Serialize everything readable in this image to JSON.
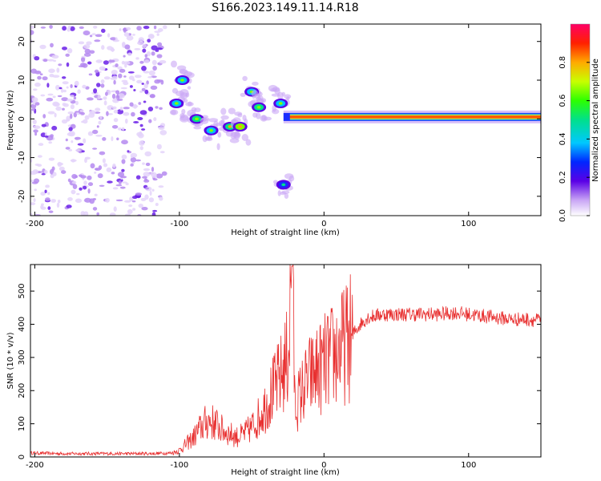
{
  "title": "S166.2023.149.11.14.R18",
  "chart_data": [
    {
      "type": "heatmap",
      "name": "spectrogram",
      "xlabel": "Height of straight line (km)",
      "ylabel": "Frequency (Hz)",
      "xlim": [
        -203,
        150
      ],
      "ylim": [
        -25,
        24.5
      ],
      "xticks": [
        -200,
        -100,
        0,
        100
      ],
      "yticks": [
        -20,
        -10,
        0,
        10,
        20
      ],
      "colorbar": {
        "label": "Normalized spectral amplitude",
        "range": [
          0,
          1
        ],
        "ticks": [
          "0.0",
          "0.2",
          "0.4",
          "0.6",
          "0.8"
        ]
      },
      "features": [
        {
          "kind": "noise",
          "x_range": [
            -203,
            -110
          ],
          "f_range": [
            -25,
            24
          ]
        },
        {
          "kind": "blob",
          "x": -102,
          "f": 4,
          "level": 0.35
        },
        {
          "kind": "blob",
          "x": -98,
          "f": 10,
          "level": 0.3
        },
        {
          "kind": "blob",
          "x": -88,
          "f": 0,
          "level": 0.4
        },
        {
          "kind": "blob",
          "x": -78,
          "f": -3,
          "level": 0.35
        },
        {
          "kind": "blob",
          "x": -65,
          "f": -2,
          "level": 0.45
        },
        {
          "kind": "blob",
          "x": -58,
          "f": -2,
          "level": 0.5
        },
        {
          "kind": "blob",
          "x": -50,
          "f": 7,
          "level": 0.35
        },
        {
          "kind": "blob",
          "x": -45,
          "f": 3,
          "level": 0.4
        },
        {
          "kind": "blob",
          "x": -30,
          "f": 4,
          "level": 0.3
        },
        {
          "kind": "blob",
          "x": -28,
          "f": -17,
          "level": 0.25
        },
        {
          "kind": "band",
          "x_range": [
            -28,
            150
          ],
          "f": 0.5,
          "level": 0.85
        }
      ]
    },
    {
      "type": "line",
      "name": "snr",
      "xlabel": "Height of straight line (km)",
      "ylabel": "SNR (10 * v/v)",
      "xlim": [
        -203,
        150
      ],
      "ylim": [
        0,
        580
      ],
      "xticks": [
        -200,
        -100,
        0,
        100
      ],
      "yticks": [
        0,
        100,
        200,
        300,
        400,
        500
      ],
      "color": "#e83030",
      "series": [
        {
          "name": "SNR",
          "x": [
            -203,
            -180,
            -160,
            -140,
            -120,
            -105,
            -100,
            -95,
            -90,
            -85,
            -80,
            -75,
            -70,
            -65,
            -60,
            -55,
            -50,
            -45,
            -40,
            -35,
            -30,
            -25,
            -22,
            -20,
            -15,
            -10,
            -5,
            0,
            5,
            10,
            15,
            20,
            25,
            30,
            40,
            50,
            60,
            70,
            80,
            90,
            100,
            110,
            120,
            130,
            140,
            150
          ],
          "y": [
            12,
            10,
            10,
            10,
            10,
            12,
            20,
            40,
            60,
            90,
            110,
            100,
            80,
            70,
            60,
            70,
            90,
            120,
            160,
            200,
            240,
            300,
            560,
            150,
            200,
            240,
            260,
            280,
            300,
            320,
            340,
            370,
            400,
            420,
            430,
            430,
            430,
            430,
            430,
            435,
            430,
            425,
            420,
            415,
            415,
            412
          ]
        }
      ]
    }
  ]
}
